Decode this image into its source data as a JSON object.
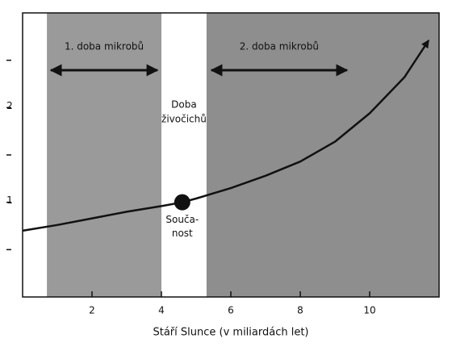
{
  "chart_data": {
    "type": "line",
    "x_label": "Stáří Slunce (v miliardách let)",
    "xlim": [
      0,
      12
    ],
    "xticks": [
      2,
      4,
      6,
      8,
      10
    ],
    "ylim": [
      0,
      3
    ],
    "yticks": [
      1,
      2
    ],
    "y_minor_ticks": [
      0.5,
      1.5,
      2.5
    ],
    "x": [
      0,
      1,
      2,
      3,
      4,
      4.6,
      5,
      6,
      7,
      8,
      9,
      10,
      11,
      11.7
    ],
    "series": [
      {
        "color": "#111111",
        "values": [
          0.7,
          0.76,
          0.83,
          0.9,
          0.96,
          1.0,
          1.04,
          1.15,
          1.28,
          1.43,
          1.64,
          1.94,
          2.32,
          2.71
        ]
      }
    ],
    "regions": [
      {
        "label": [
          "1. doba mikrobů"
        ],
        "x": [
          0.7,
          4.0
        ],
        "color": "#9a9a9a"
      },
      {
        "label": [
          "Doba",
          "živočichů"
        ],
        "x": [
          4.0,
          5.3
        ],
        "color": "#ffffff"
      },
      {
        "label": [
          "2. doba mikrobů"
        ],
        "x": [
          5.3,
          12
        ],
        "color": "#8e8e8e"
      }
    ],
    "point": {
      "label": [
        "Souča-",
        "nost"
      ],
      "x": 4.6,
      "y": 1.0
    }
  }
}
